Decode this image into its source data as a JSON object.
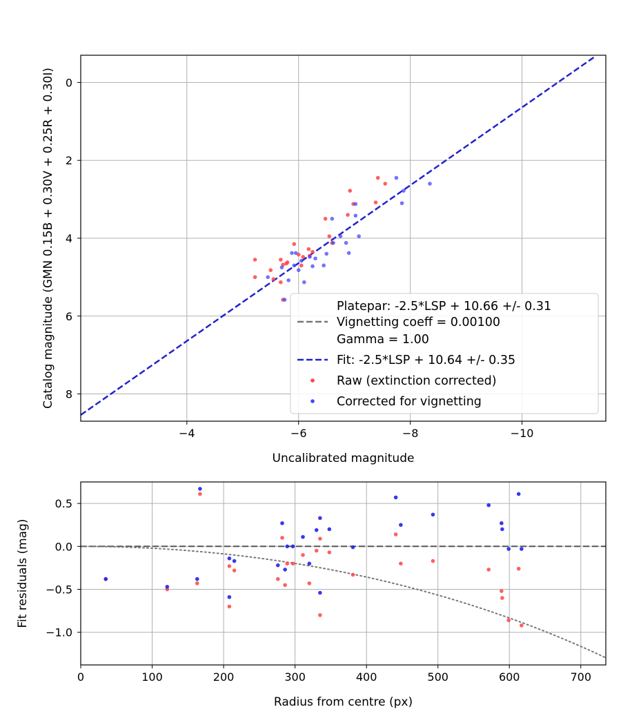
{
  "chart_data": [
    {
      "type": "scatter",
      "xlabel": "Uncalibrated magnitude",
      "ylabel": "Catalog magnitude (GMN 0.15B + 0.30V + 0.25R + 0.30I)",
      "xlim": [
        -2.1,
        -11.5
      ],
      "ylim": [
        8.7,
        -0.7
      ],
      "x_inverted": true,
      "y_inverted": true,
      "xticks": [
        -4,
        -6,
        -8,
        -10
      ],
      "xtick_labels": [
        "−4",
        "−6",
        "−8",
        "−10"
      ],
      "yticks": [
        0,
        2,
        4,
        6,
        8
      ],
      "ytick_labels": [
        "0",
        "2",
        "4",
        "6",
        "8"
      ],
      "grid": true,
      "legend_position": "lower-right",
      "legend": [
        {
          "label": "Platepar: -2.5*LSP + 10.66 +/- 0.31",
          "style": "none"
        },
        {
          "label": "Vignetting coeff = 0.00100",
          "style": "gray-dashed",
          "color": "#777777"
        },
        {
          "label": "Gamma = 1.00",
          "style": "none"
        },
        {
          "label": "Fit: -2.5*LSP + 10.64 +/- 0.35",
          "style": "blue-dashed",
          "color": "#2222cc"
        },
        {
          "label": "Raw (extinction corrected)",
          "style": "red-dot",
          "color": "#ff4444"
        },
        {
          "label": "Corrected for vignetting",
          "style": "blue-dot",
          "color": "#4444ff"
        }
      ],
      "fit_line": {
        "slope_intercept": 10.64,
        "color": "#2222cc",
        "x_range": [
          -2.1,
          -11.3
        ]
      },
      "series": [
        {
          "name": "Raw (extinction corrected)",
          "color": "#ff4444",
          "points": [
            [
              -5.22,
              4.55
            ],
            [
              -5.22,
              5.0
            ],
            [
              -5.5,
              4.82
            ],
            [
              -5.55,
              5.05
            ],
            [
              -5.68,
              5.13
            ],
            [
              -5.68,
              4.55
            ],
            [
              -5.72,
              4.68
            ],
            [
              -5.72,
              5.58
            ],
            [
              -5.78,
              4.65
            ],
            [
              -5.8,
              4.62
            ],
            [
              -5.92,
              4.15
            ],
            [
              -6.0,
              4.42
            ],
            [
              -6.05,
              4.7
            ],
            [
              -6.08,
              4.48
            ],
            [
              -6.18,
              4.28
            ],
            [
              -6.2,
              4.45
            ],
            [
              -6.25,
              4.35
            ],
            [
              -6.48,
              3.5
            ],
            [
              -6.55,
              3.95
            ],
            [
              -6.6,
              4.12
            ],
            [
              -6.88,
              3.4
            ],
            [
              -6.92,
              2.78
            ],
            [
              -6.98,
              3.12
            ],
            [
              -7.38,
              3.08
            ],
            [
              -7.42,
              2.45
            ],
            [
              -7.55,
              2.6
            ]
          ]
        },
        {
          "name": "Corrected for vignetting",
          "color": "#4444ff",
          "points": [
            [
              -5.45,
              5.0
            ],
            [
              -5.7,
              4.75
            ],
            [
              -5.75,
              5.58
            ],
            [
              -5.82,
              5.08
            ],
            [
              -5.88,
              4.38
            ],
            [
              -5.92,
              4.7
            ],
            [
              -5.95,
              4.38
            ],
            [
              -6.0,
              4.82
            ],
            [
              -6.05,
              4.58
            ],
            [
              -6.1,
              5.13
            ],
            [
              -6.2,
              4.48
            ],
            [
              -6.25,
              4.72
            ],
            [
              -6.3,
              4.52
            ],
            [
              -6.45,
              4.7
            ],
            [
              -6.5,
              4.4
            ],
            [
              -6.6,
              3.5
            ],
            [
              -6.62,
              4.12
            ],
            [
              -6.75,
              3.95
            ],
            [
              -6.85,
              4.12
            ],
            [
              -6.9,
              4.38
            ],
            [
              -7.02,
              3.12
            ],
            [
              -7.02,
              3.42
            ],
            [
              -7.08,
              3.95
            ],
            [
              -7.75,
              2.45
            ],
            [
              -7.85,
              3.1
            ],
            [
              -7.88,
              2.78
            ],
            [
              -8.35,
              2.6
            ]
          ]
        }
      ]
    },
    {
      "type": "scatter",
      "xlabel": "Radius from centre (px)",
      "ylabel": "Fit residuals (mag)",
      "xlim": [
        0,
        735
      ],
      "ylim": [
        -1.38,
        0.75
      ],
      "xticks": [
        0,
        100,
        200,
        300,
        400,
        500,
        600,
        700
      ],
      "xtick_labels": [
        "0",
        "100",
        "200",
        "300",
        "400",
        "500",
        "600",
        "700"
      ],
      "yticks": [
        0.5,
        0.0,
        -0.5,
        -1.0
      ],
      "ytick_labels": [
        "0.5",
        "0.0",
        "−0.5",
        "−1.0"
      ],
      "grid": true,
      "zero_line": {
        "y": 0,
        "color": "#555555",
        "style": "dashed"
      },
      "vignetting_curve": {
        "coeff": 0.001,
        "gamma": 1.0,
        "color": "#777777",
        "style": "dotted"
      },
      "series": [
        {
          "name": "Raw (extinction corrected)",
          "color": "#ff4444",
          "points": [
            [
              35,
              -0.38
            ],
            [
              121,
              -0.5
            ],
            [
              163,
              -0.43
            ],
            [
              167,
              0.61
            ],
            [
              208,
              -0.23
            ],
            [
              208,
              -0.7
            ],
            [
              215,
              -0.28
            ],
            [
              276,
              -0.38
            ],
            [
              282,
              0.1
            ],
            [
              286,
              -0.45
            ],
            [
              289,
              -0.2
            ],
            [
              297,
              -0.2
            ],
            [
              311,
              -0.1
            ],
            [
              320,
              -0.43
            ],
            [
              330,
              -0.05
            ],
            [
              335,
              -0.8
            ],
            [
              335,
              0.09
            ],
            [
              348,
              -0.07
            ],
            [
              381,
              -0.33
            ],
            [
              441,
              0.14
            ],
            [
              448,
              -0.2
            ],
            [
              493,
              -0.17
            ],
            [
              571,
              -0.27
            ],
            [
              589,
              -0.52
            ],
            [
              590,
              -0.6
            ],
            [
              599,
              -0.86
            ],
            [
              613,
              -0.26
            ],
            [
              617,
              -0.92
            ]
          ]
        },
        {
          "name": "Corrected for vignetting",
          "color": "#2222ee",
          "points": [
            [
              35,
              -0.38
            ],
            [
              121,
              -0.47
            ],
            [
              163,
              -0.38
            ],
            [
              167,
              0.67
            ],
            [
              208,
              -0.14
            ],
            [
              208,
              -0.59
            ],
            [
              215,
              -0.17
            ],
            [
              276,
              -0.22
            ],
            [
              282,
              0.27
            ],
            [
              286,
              -0.27
            ],
            [
              289,
              0.0
            ],
            [
              297,
              0.0
            ],
            [
              311,
              0.11
            ],
            [
              320,
              -0.2
            ],
            [
              330,
              0.19
            ],
            [
              335,
              -0.54
            ],
            [
              335,
              0.33
            ],
            [
              348,
              0.2
            ],
            [
              381,
              -0.01
            ],
            [
              441,
              0.57
            ],
            [
              448,
              0.25
            ],
            [
              493,
              0.37
            ],
            [
              571,
              0.48
            ],
            [
              589,
              0.27
            ],
            [
              590,
              0.2
            ],
            [
              599,
              -0.03
            ],
            [
              613,
              0.61
            ],
            [
              617,
              -0.03
            ]
          ]
        }
      ]
    }
  ]
}
